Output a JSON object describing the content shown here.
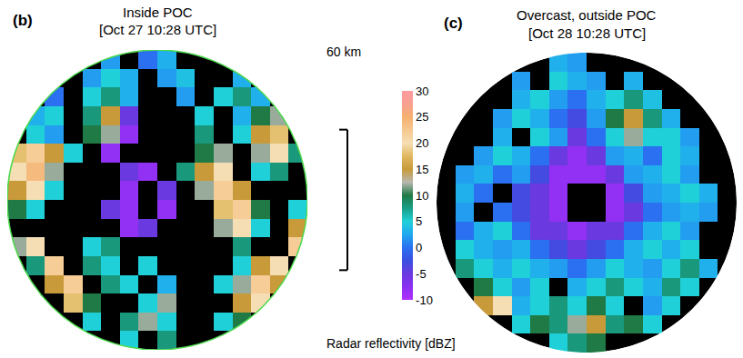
{
  "chart_data": [
    {
      "type": "heatmap",
      "panel": "(b)",
      "title": "Inside POC",
      "subtitle": "[Oct 27 10:28 UTC]",
      "xlim": [
        -64,
        64
      ],
      "ylim": [
        -64,
        64
      ],
      "tick_labels": false,
      "color": "#4cd94c",
      "x": [
        -60,
        -52,
        -44,
        -36,
        -28,
        -20,
        -12,
        -4,
        4,
        12,
        20,
        28,
        36,
        44,
        52,
        60
      ],
      "y": [
        60,
        52,
        44,
        36,
        28,
        20,
        12,
        4,
        -4,
        -12,
        -20,
        -28,
        -36,
        -44,
        -52,
        -60
      ],
      "z": [
        [
          null,
          null,
          null,
          null,
          null,
          2,
          null,
          0,
          3,
          null,
          null,
          null,
          null,
          null,
          null,
          null
        ],
        [
          null,
          null,
          null,
          null,
          2,
          5,
          3,
          null,
          2,
          4,
          null,
          null,
          3,
          null,
          null,
          null
        ],
        [
          null,
          null,
          0,
          null,
          5,
          8,
          3,
          null,
          null,
          2,
          null,
          5,
          8,
          3,
          null,
          null
        ],
        [
          null,
          3,
          5,
          null,
          8,
          15,
          -5,
          null,
          null,
          null,
          5,
          null,
          3,
          10,
          12,
          null
        ],
        [
          null,
          5,
          2,
          null,
          10,
          12,
          -8,
          null,
          null,
          null,
          8,
          null,
          5,
          15,
          18,
          null
        ],
        [
          18,
          22,
          15,
          5,
          null,
          -8,
          null,
          null,
          null,
          null,
          10,
          12,
          null,
          12,
          20,
          8
        ],
        [
          20,
          24,
          12,
          null,
          null,
          null,
          -5,
          -8,
          null,
          8,
          15,
          20,
          null,
          5,
          8,
          null
        ],
        [
          15,
          20,
          5,
          null,
          null,
          null,
          -8,
          null,
          -5,
          null,
          12,
          22,
          15,
          null,
          null,
          null
        ],
        [
          10,
          5,
          null,
          null,
          null,
          -5,
          -8,
          null,
          -8,
          null,
          null,
          18,
          22,
          10,
          null,
          5
        ],
        [
          null,
          null,
          null,
          null,
          null,
          null,
          -8,
          -5,
          null,
          null,
          null,
          12,
          20,
          5,
          null,
          15
        ],
        [
          12,
          20,
          null,
          null,
          5,
          8,
          null,
          null,
          null,
          null,
          null,
          null,
          8,
          null,
          null,
          22
        ],
        [
          null,
          8,
          22,
          null,
          8,
          5,
          null,
          5,
          null,
          null,
          null,
          null,
          5,
          15,
          20,
          null
        ],
        [
          null,
          null,
          15,
          22,
          null,
          8,
          5,
          null,
          3,
          null,
          null,
          5,
          12,
          22,
          15,
          null
        ],
        [
          null,
          null,
          null,
          18,
          10,
          null,
          null,
          5,
          12,
          null,
          null,
          null,
          15,
          20,
          null,
          null
        ],
        [
          null,
          null,
          null,
          null,
          5,
          null,
          8,
          12,
          5,
          null,
          null,
          5,
          10,
          null,
          null,
          null
        ],
        [
          null,
          null,
          null,
          null,
          null,
          null,
          5,
          null,
          8,
          null,
          null,
          null,
          null,
          null,
          null,
          null
        ]
      ]
    },
    {
      "type": "heatmap",
      "panel": "(c)",
      "title": "Overcast, outside POC",
      "subtitle": "[Oct 28 10:28 UTC]",
      "xlim": [
        -64,
        64
      ],
      "ylim": [
        -64,
        64
      ],
      "tick_labels": false,
      "x": [
        -60,
        -52,
        -44,
        -36,
        -28,
        -20,
        -12,
        -4,
        4,
        12,
        20,
        28,
        36,
        44,
        52,
        60
      ],
      "y": [
        60,
        52,
        44,
        36,
        28,
        20,
        12,
        4,
        -4,
        -12,
        -20,
        -28,
        -36,
        -44,
        -52,
        -60
      ],
      "z": [
        [
          null,
          null,
          null,
          null,
          null,
          null,
          3,
          2,
          null,
          null,
          null,
          null,
          null,
          null,
          null,
          null
        ],
        [
          null,
          null,
          null,
          null,
          2,
          null,
          5,
          3,
          2,
          null,
          3,
          null,
          null,
          null,
          null,
          null
        ],
        [
          null,
          null,
          null,
          null,
          3,
          5,
          2,
          0,
          3,
          5,
          8,
          4,
          null,
          null,
          null,
          null
        ],
        [
          null,
          null,
          null,
          2,
          5,
          3,
          0,
          -3,
          2,
          10,
          15,
          8,
          3,
          null,
          null,
          null
        ],
        [
          null,
          null,
          null,
          3,
          null,
          5,
          2,
          -5,
          0,
          5,
          12,
          5,
          5,
          2,
          null,
          null
        ],
        [
          null,
          null,
          2,
          5,
          3,
          0,
          -5,
          -8,
          -5,
          2,
          3,
          0,
          5,
          3,
          null,
          null
        ],
        [
          null,
          2,
          3,
          0,
          2,
          -3,
          -8,
          -8,
          -8,
          -5,
          2,
          3,
          5,
          2,
          null,
          null
        ],
        [
          null,
          3,
          0,
          null,
          -3,
          -5,
          -8,
          null,
          null,
          -8,
          -3,
          2,
          3,
          5,
          3,
          null
        ],
        [
          null,
          2,
          null,
          0,
          -3,
          -5,
          -8,
          null,
          null,
          -8,
          -5,
          0,
          2,
          3,
          2,
          null
        ],
        [
          null,
          0,
          3,
          5,
          0,
          -5,
          -5,
          -8,
          -5,
          -5,
          0,
          3,
          5,
          2,
          null,
          null
        ],
        [
          null,
          5,
          3,
          2,
          3,
          0,
          -3,
          -5,
          -3,
          0,
          3,
          5,
          3,
          5,
          null,
          null
        ],
        [
          null,
          8,
          5,
          3,
          5,
          3,
          2,
          0,
          2,
          5,
          3,
          2,
          5,
          8,
          3,
          null
        ],
        [
          null,
          null,
          10,
          5,
          2,
          5,
          null,
          3,
          5,
          8,
          5,
          3,
          8,
          5,
          null,
          null
        ],
        [
          null,
          null,
          15,
          20,
          3,
          5,
          8,
          5,
          10,
          5,
          null,
          2,
          5,
          null,
          null,
          null
        ],
        [
          null,
          null,
          null,
          null,
          5,
          10,
          8,
          12,
          15,
          8,
          10,
          5,
          null,
          null,
          null,
          null
        ],
        [
          null,
          null,
          null,
          null,
          null,
          null,
          5,
          8,
          10,
          null,
          null,
          null,
          null,
          null,
          null,
          null
        ]
      ]
    }
  ],
  "colorbar": {
    "title": "Radar reflectivity [dBZ]",
    "zlim": [
      -10,
      30
    ],
    "zticks": [
      -10,
      -5,
      0,
      5,
      10,
      15,
      20,
      25,
      30
    ]
  },
  "scale_bar": {
    "value": 60,
    "label": "60 km"
  }
}
